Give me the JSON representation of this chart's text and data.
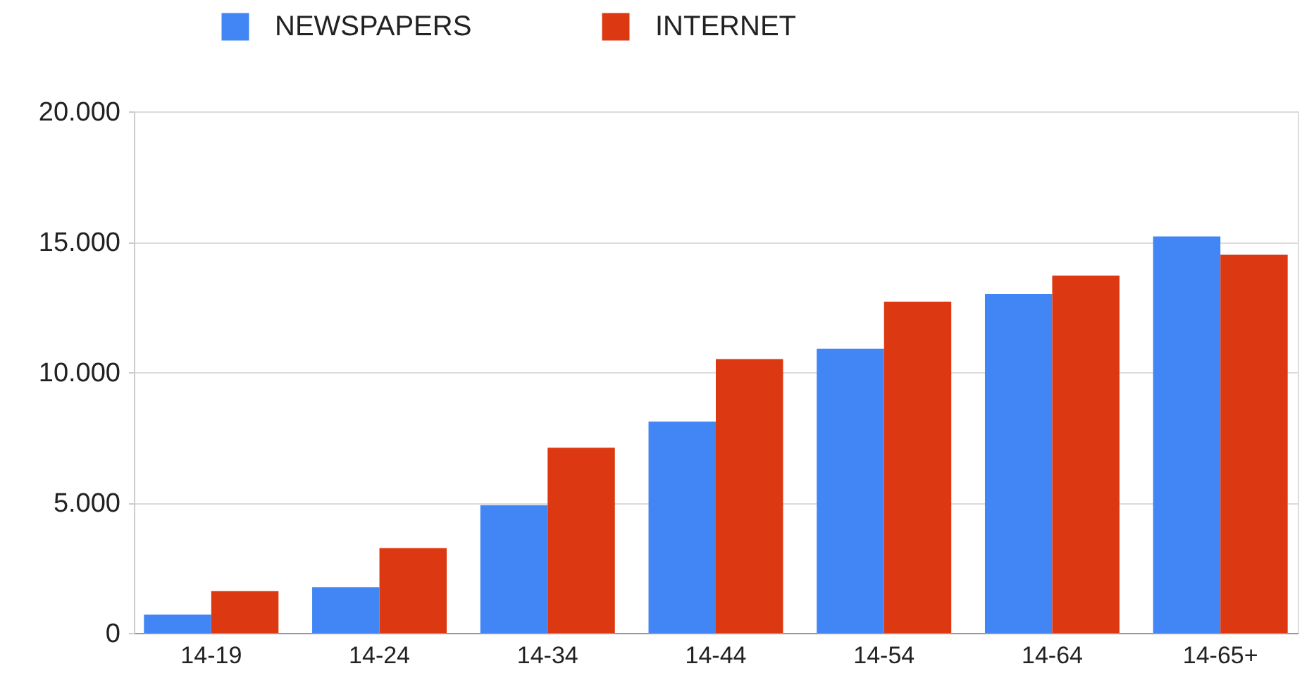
{
  "chart_data": {
    "type": "bar",
    "categories": [
      "14-19",
      "14-24",
      "14-34",
      "14-44",
      "14-54",
      "14-64",
      "14-65+"
    ],
    "series": [
      {
        "name": "NEWSPAPERS",
        "color": "#4285f4",
        "values": [
          700,
          1750,
          4900,
          8100,
          10900,
          13000,
          15200
        ]
      },
      {
        "name": "INTERNET",
        "color": "#dc3912",
        "values": [
          1600,
          3250,
          7100,
          10500,
          12700,
          13700,
          14500
        ]
      }
    ],
    "ylim": [
      0,
      20000
    ],
    "yticks": [
      0,
      {
        "value": 5000,
        "label": "5.000"
      },
      {
        "value": 10000,
        "label": "10.000"
      },
      {
        "value": 15000,
        "label": "15.000"
      },
      {
        "value": 20000,
        "label": "20.000"
      }
    ],
    "grid": "y",
    "legend": "top"
  }
}
